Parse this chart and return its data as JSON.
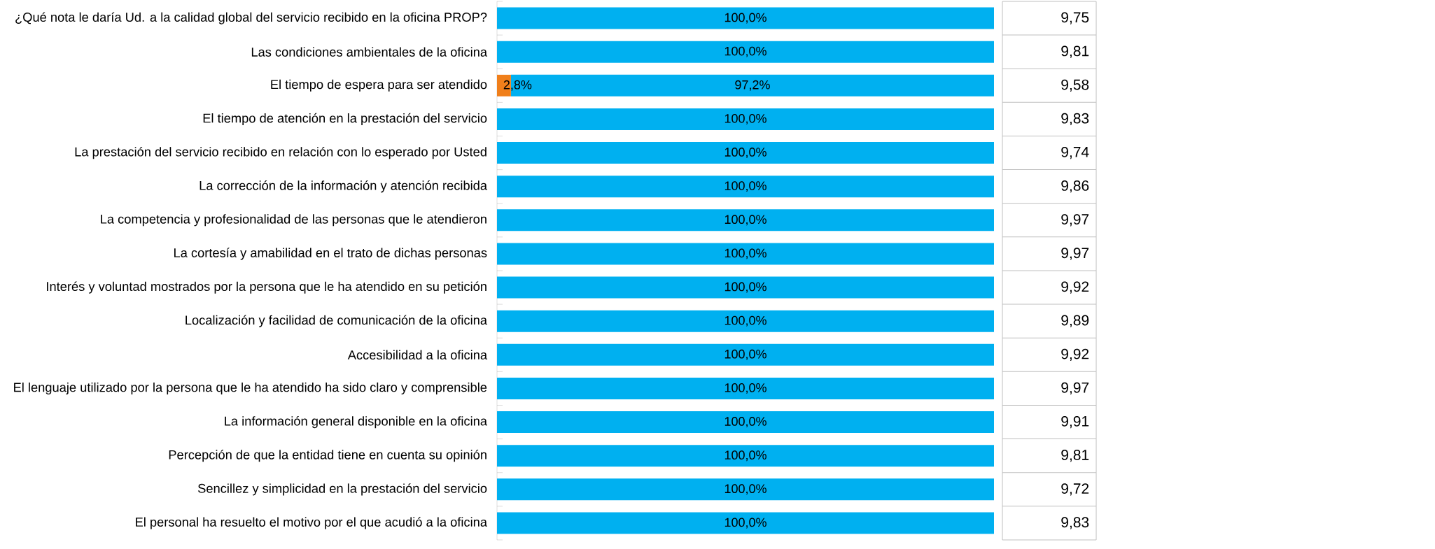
{
  "chart_data": {
    "type": "bar",
    "orientation": "horizontal",
    "stacked": true,
    "categories": [
      "¿Qué nota le daría Ud. a la calidad global del servicio recibido en la oficina PROP?",
      "Las condiciones ambientales de la oficina",
      "El tiempo de espera para ser atendido",
      "El tiempo de atención en la prestación del servicio",
      "La prestación del servicio recibido en relación con lo esperado por Usted",
      "La corrección de la información y atención recibida",
      "La competencia y profesionalidad de las personas que le atendieron",
      "La cortesía y amabilidad en el trato de dichas personas",
      "Interés y voluntad mostrados por la persona que le ha atendido en su petición",
      "Localización y facilidad de comunicación de la oficina",
      "Accesibilidad a la oficina",
      "El lenguaje utilizado por la persona que le ha atendido ha sido claro y comprensible",
      "La información general disponible en la oficina",
      "Percepción de que la entidad tiene en cuenta su opinión",
      "Sencillez y simplicidad en la prestación del servicio",
      "El personal ha resuelto el motivo por el que acudió a la oficina"
    ],
    "series": [
      {
        "color": "#f07f1b",
        "values": [
          0,
          0,
          2.8,
          0,
          0,
          0,
          0,
          0,
          0,
          0,
          0,
          0,
          0,
          0,
          0,
          0
        ],
        "value_labels": [
          null,
          null,
          "2,8%",
          null,
          null,
          null,
          null,
          null,
          null,
          null,
          null,
          null,
          null,
          null,
          null,
          null
        ]
      },
      {
        "color": "#00b0f0",
        "values": [
          100,
          100,
          97.2,
          100,
          100,
          100,
          100,
          100,
          100,
          100,
          100,
          100,
          100,
          100,
          100,
          100
        ],
        "value_labels": [
          "100,0%",
          "100,0%",
          "97,2%",
          "100,0%",
          "100,0%",
          "100,0%",
          "100,0%",
          "100,0%",
          "100,0%",
          "100,0%",
          "100,0%",
          "100,0%",
          "100,0%",
          "100,0%",
          "100,0%",
          "100,0%"
        ]
      }
    ],
    "xlim": [
      0,
      100
    ],
    "tick_labels": "y",
    "annotations": [
      "9,75",
      "9,81",
      "9,58",
      "9,83",
      "9,74",
      "9,86",
      "9,97",
      "9,97",
      "9,92",
      "9,89",
      "9,92",
      "9,97",
      "9,91",
      "9,81",
      "9,72",
      "9,83"
    ]
  }
}
